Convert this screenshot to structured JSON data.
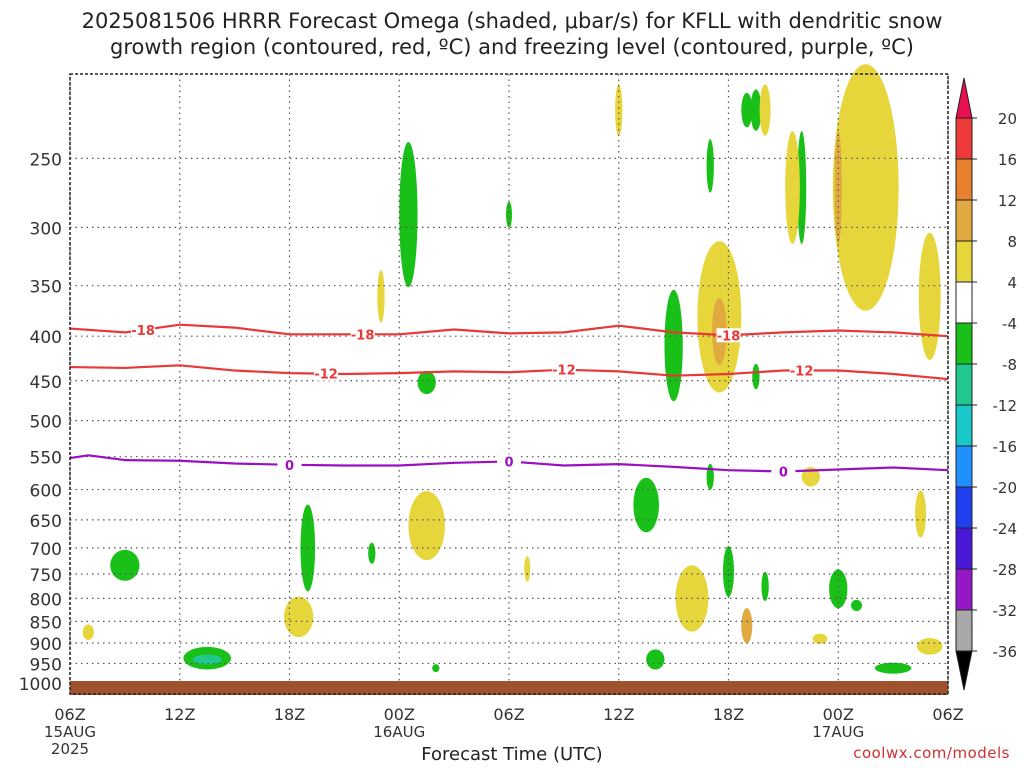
{
  "title": "2025081506 HRRR Forecast Omega (shaded, μbar/s) for KFLL with dendritic snow\ngrowth region (contoured, red, ºC) and freezing level (contoured, purple, ºC)",
  "credit": "coolwx.com/models",
  "chart_data": {
    "type": "heatmap",
    "title": "2025081506 HRRR Forecast Omega (shaded, μbar/s) for KFLL with dendritic snow growth region (contoured, red, ºC) and freezing level (contoured, purple, ºC)",
    "xlabel": "Forecast Time (UTC)",
    "ylabel": "",
    "x_range_hours": [
      0,
      48
    ],
    "x_ticks": [
      {
        "hour": 0,
        "label": "06Z",
        "sub": "15AUG",
        "sub2": "2025"
      },
      {
        "hour": 6,
        "label": "12Z"
      },
      {
        "hour": 12,
        "label": "18Z"
      },
      {
        "hour": 18,
        "label": "00Z",
        "sub": "16AUG"
      },
      {
        "hour": 24,
        "label": "06Z"
      },
      {
        "hour": 30,
        "label": "12Z"
      },
      {
        "hour": 36,
        "label": "18Z"
      },
      {
        "hour": 42,
        "label": "00Z",
        "sub": "17AUG"
      },
      {
        "hour": 48,
        "label": "06Z"
      }
    ],
    "y_ticks": [
      250,
      300,
      350,
      400,
      450,
      500,
      550,
      600,
      650,
      700,
      750,
      800,
      850,
      900,
      950,
      1000
    ],
    "y_range_hpa": [
      200,
      1030
    ],
    "y_scale": "log-pressure",
    "grid": true,
    "colorbar": {
      "labels": [
        20,
        16,
        12,
        8,
        4,
        -4,
        -8,
        -12,
        -16,
        -20,
        -24,
        -28,
        -32,
        -36
      ],
      "colors": [
        "#e8104f",
        "#ee3a3a",
        "#e88030",
        "#e0aa40",
        "#e6d63c",
        "#ffffff",
        "#18c018",
        "#20c890",
        "#18c8c8",
        "#2090ff",
        "#2040f0",
        "#4a18d8",
        "#9418c8",
        "#a8a8a8",
        "#000000"
      ]
    },
    "contours": [
      {
        "field": "temperature",
        "level": -18,
        "color": "#e83838",
        "hours": [
          0,
          3,
          6,
          9,
          12,
          15,
          18,
          21,
          24,
          27,
          30,
          33,
          36,
          39,
          42,
          45,
          48
        ],
        "hpa": [
          392,
          396,
          388,
          391,
          398,
          398,
          398,
          393,
          397,
          396,
          389,
          396,
          399,
          396,
          394,
          396,
          400
        ]
      },
      {
        "field": "temperature",
        "level": -12,
        "color": "#e83838",
        "hours": [
          0,
          3,
          6,
          9,
          12,
          15,
          18,
          21,
          24,
          27,
          30,
          33,
          36,
          39,
          42,
          45,
          48
        ],
        "hpa": [
          434,
          435,
          432,
          438,
          441,
          442,
          441,
          439,
          440,
          437,
          439,
          444,
          442,
          438,
          438,
          442,
          448
        ]
      },
      {
        "field": "temperature",
        "level": 0,
        "color": "#9a10c0",
        "hours": [
          0,
          1,
          3,
          6,
          9,
          12,
          15,
          18,
          21,
          24,
          27,
          30,
          33,
          36,
          39,
          42,
          45,
          48
        ],
        "hpa": [
          552,
          548,
          555,
          556,
          560,
          562,
          563,
          563,
          559,
          557,
          563,
          561,
          565,
          570,
          572,
          569,
          566,
          570
        ]
      }
    ],
    "omega_regions": [
      {
        "v": -6,
        "hour": 3.0,
        "hpa": 733,
        "dh": 0.8,
        "dp": 30
      },
      {
        "v": -6,
        "hour": 7.5,
        "hpa": 937,
        "dh": 1.3,
        "dp": 28
      },
      {
        "v": -10,
        "hour": 7.5,
        "hpa": 940,
        "dh": 0.8,
        "dp": 12
      },
      {
        "v": -6,
        "hour": 13.0,
        "hpa": 700,
        "dh": 0.4,
        "dp": 80
      },
      {
        "v": -6,
        "hour": 16.5,
        "hpa": 710,
        "dh": 0.2,
        "dp": 20
      },
      {
        "v": -6,
        "hour": 18.5,
        "hpa": 290,
        "dh": 0.5,
        "dp": 55
      },
      {
        "v": -6,
        "hour": 24.0,
        "hpa": 290,
        "dh": 0.15,
        "dp": 10
      },
      {
        "v": -6,
        "hour": 19.5,
        "hpa": 452,
        "dh": 0.5,
        "dp": 14
      },
      {
        "v": -6,
        "hour": 31.5,
        "hpa": 625,
        "dh": 0.7,
        "dp": 45
      },
      {
        "v": -6,
        "hour": 32.0,
        "hpa": 940,
        "dh": 0.5,
        "dp": 25
      },
      {
        "v": -6,
        "hour": 33.0,
        "hpa": 410,
        "dh": 0.5,
        "dp": 60
      },
      {
        "v": -6,
        "hour": 35.0,
        "hpa": 255,
        "dh": 0.2,
        "dp": 18
      },
      {
        "v": -6,
        "hour": 37.0,
        "hpa": 220,
        "dh": 0.3,
        "dp": 10
      },
      {
        "v": -6,
        "hour": 35.0,
        "hpa": 580,
        "dh": 0.2,
        "dp": 20
      },
      {
        "v": -6,
        "hour": 36.0,
        "hpa": 745,
        "dh": 0.3,
        "dp": 50
      },
      {
        "v": -6,
        "hour": 38.0,
        "hpa": 775,
        "dh": 0.2,
        "dp": 30
      },
      {
        "v": -6,
        "hour": 37.5,
        "hpa": 445,
        "dh": 0.2,
        "dp": 15
      },
      {
        "v": -6,
        "hour": 40.0,
        "hpa": 270,
        "dh": 0.25,
        "dp": 40
      },
      {
        "v": -6,
        "hour": 42.0,
        "hpa": 780,
        "dh": 0.5,
        "dp": 40
      },
      {
        "v": -6,
        "hour": 43.0,
        "hpa": 815,
        "dh": 0.3,
        "dp": 12
      },
      {
        "v": -6,
        "hour": 45.0,
        "hpa": 962,
        "dh": 1.0,
        "dp": 14
      },
      {
        "v": -6,
        "hour": 20.0,
        "hpa": 962,
        "dh": 0.2,
        "dp": 8
      },
      {
        "v": -6,
        "hour": 37.5,
        "hpa": 220,
        "dh": 0.3,
        "dp": 12
      },
      {
        "v": 6,
        "hour": 1.0,
        "hpa": 875,
        "dh": 0.3,
        "dp": 18
      },
      {
        "v": 6,
        "hour": 12.5,
        "hpa": 840,
        "dh": 0.8,
        "dp": 45
      },
      {
        "v": 6,
        "hour": 17.0,
        "hpa": 360,
        "dh": 0.2,
        "dp": 25
      },
      {
        "v": 6,
        "hour": 19.5,
        "hpa": 660,
        "dh": 1.0,
        "dp": 60
      },
      {
        "v": 6,
        "hour": 25.0,
        "hpa": 740,
        "dh": 0.15,
        "dp": 25
      },
      {
        "v": 6,
        "hour": 30.0,
        "hpa": 220,
        "dh": 0.2,
        "dp": 15
      },
      {
        "v": 6,
        "hour": 34.0,
        "hpa": 800,
        "dh": 0.9,
        "dp": 70
      },
      {
        "v": 6,
        "hour": 35.5,
        "hpa": 380,
        "dh": 1.2,
        "dp": 75
      },
      {
        "v": 6,
        "hour": 40.5,
        "hpa": 580,
        "dh": 0.5,
        "dp": 15
      },
      {
        "v": 6,
        "hour": 41.0,
        "hpa": 890,
        "dh": 0.4,
        "dp": 12
      },
      {
        "v": 6,
        "hour": 38.0,
        "hpa": 220,
        "dh": 0.3,
        "dp": 15
      },
      {
        "v": 6,
        "hour": 39.5,
        "hpa": 270,
        "dh": 0.4,
        "dp": 40
      },
      {
        "v": 6,
        "hour": 43.5,
        "hpa": 270,
        "dh": 1.8,
        "dp": 85
      },
      {
        "v": 6,
        "hour": 47.0,
        "hpa": 360,
        "dh": 0.6,
        "dp": 60
      },
      {
        "v": 6,
        "hour": 46.5,
        "hpa": 640,
        "dh": 0.3,
        "dp": 40
      },
      {
        "v": 6,
        "hour": 47.0,
        "hpa": 908,
        "dh": 0.7,
        "dp": 20
      },
      {
        "v": 10,
        "hour": 35.5,
        "hpa": 395,
        "dh": 0.4,
        "dp": 35
      },
      {
        "v": 10,
        "hour": 42.0,
        "hpa": 270,
        "dh": 0.2,
        "dp": 40
      },
      {
        "v": 10,
        "hour": 37.0,
        "hpa": 860,
        "dh": 0.3,
        "dp": 40
      }
    ]
  }
}
